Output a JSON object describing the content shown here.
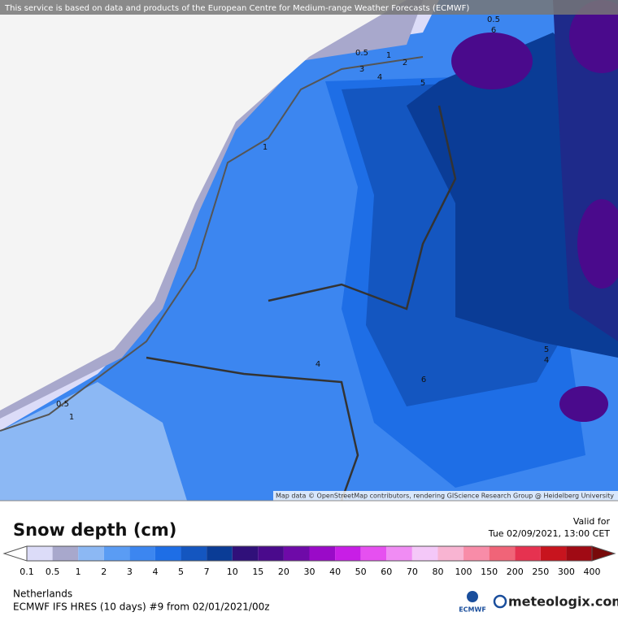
{
  "header": {
    "notice": "This service is based on data and products of the European Centre for Medium-range Weather Forecasts (ECMWF)"
  },
  "map": {
    "attribution": "Map data © OpenStreetMap contributors, rendering GIScience Research Group @ Heidelberg University",
    "contour_labels": [
      "0.5",
      "1",
      "2",
      "3",
      "4",
      "5",
      "1",
      "4",
      "6",
      "5",
      "4",
      "0.5",
      "1",
      "0.5",
      "6"
    ]
  },
  "legend": {
    "title": "Snow depth (cm)",
    "valid_label": "Valid for",
    "valid_time": "Tue 02/09/2021, 13:00 CET",
    "ticks": [
      "0.1",
      "0.5",
      "1",
      "2",
      "3",
      "4",
      "5",
      "7",
      "10",
      "15",
      "20",
      "30",
      "40",
      "50",
      "60",
      "70",
      "80",
      "100",
      "150",
      "200",
      "250",
      "300",
      "400"
    ],
    "colors": [
      "#dcdcf8",
      "#a8a8cc",
      "#8cb8f4",
      "#5a9cf4",
      "#3c86f0",
      "#1e6ee6",
      "#1456c0",
      "#0a3c96",
      "#30107a",
      "#4a0a8c",
      "#6e0aa8",
      "#9a0ac8",
      "#c81ee6",
      "#e650f0",
      "#f08cf4",
      "#f4c8f8",
      "#f8b4d2",
      "#f88ca8",
      "#f06478",
      "#e63250",
      "#c8141e",
      "#a00a14",
      "#780a0a"
    ]
  },
  "footer": {
    "region": "Netherlands",
    "model": "ECMWF IFS HRES (10 days) #9 from  02/01/2021/00z",
    "ecmwf_logo": "ECMWF",
    "brand": "meteologix.com"
  }
}
